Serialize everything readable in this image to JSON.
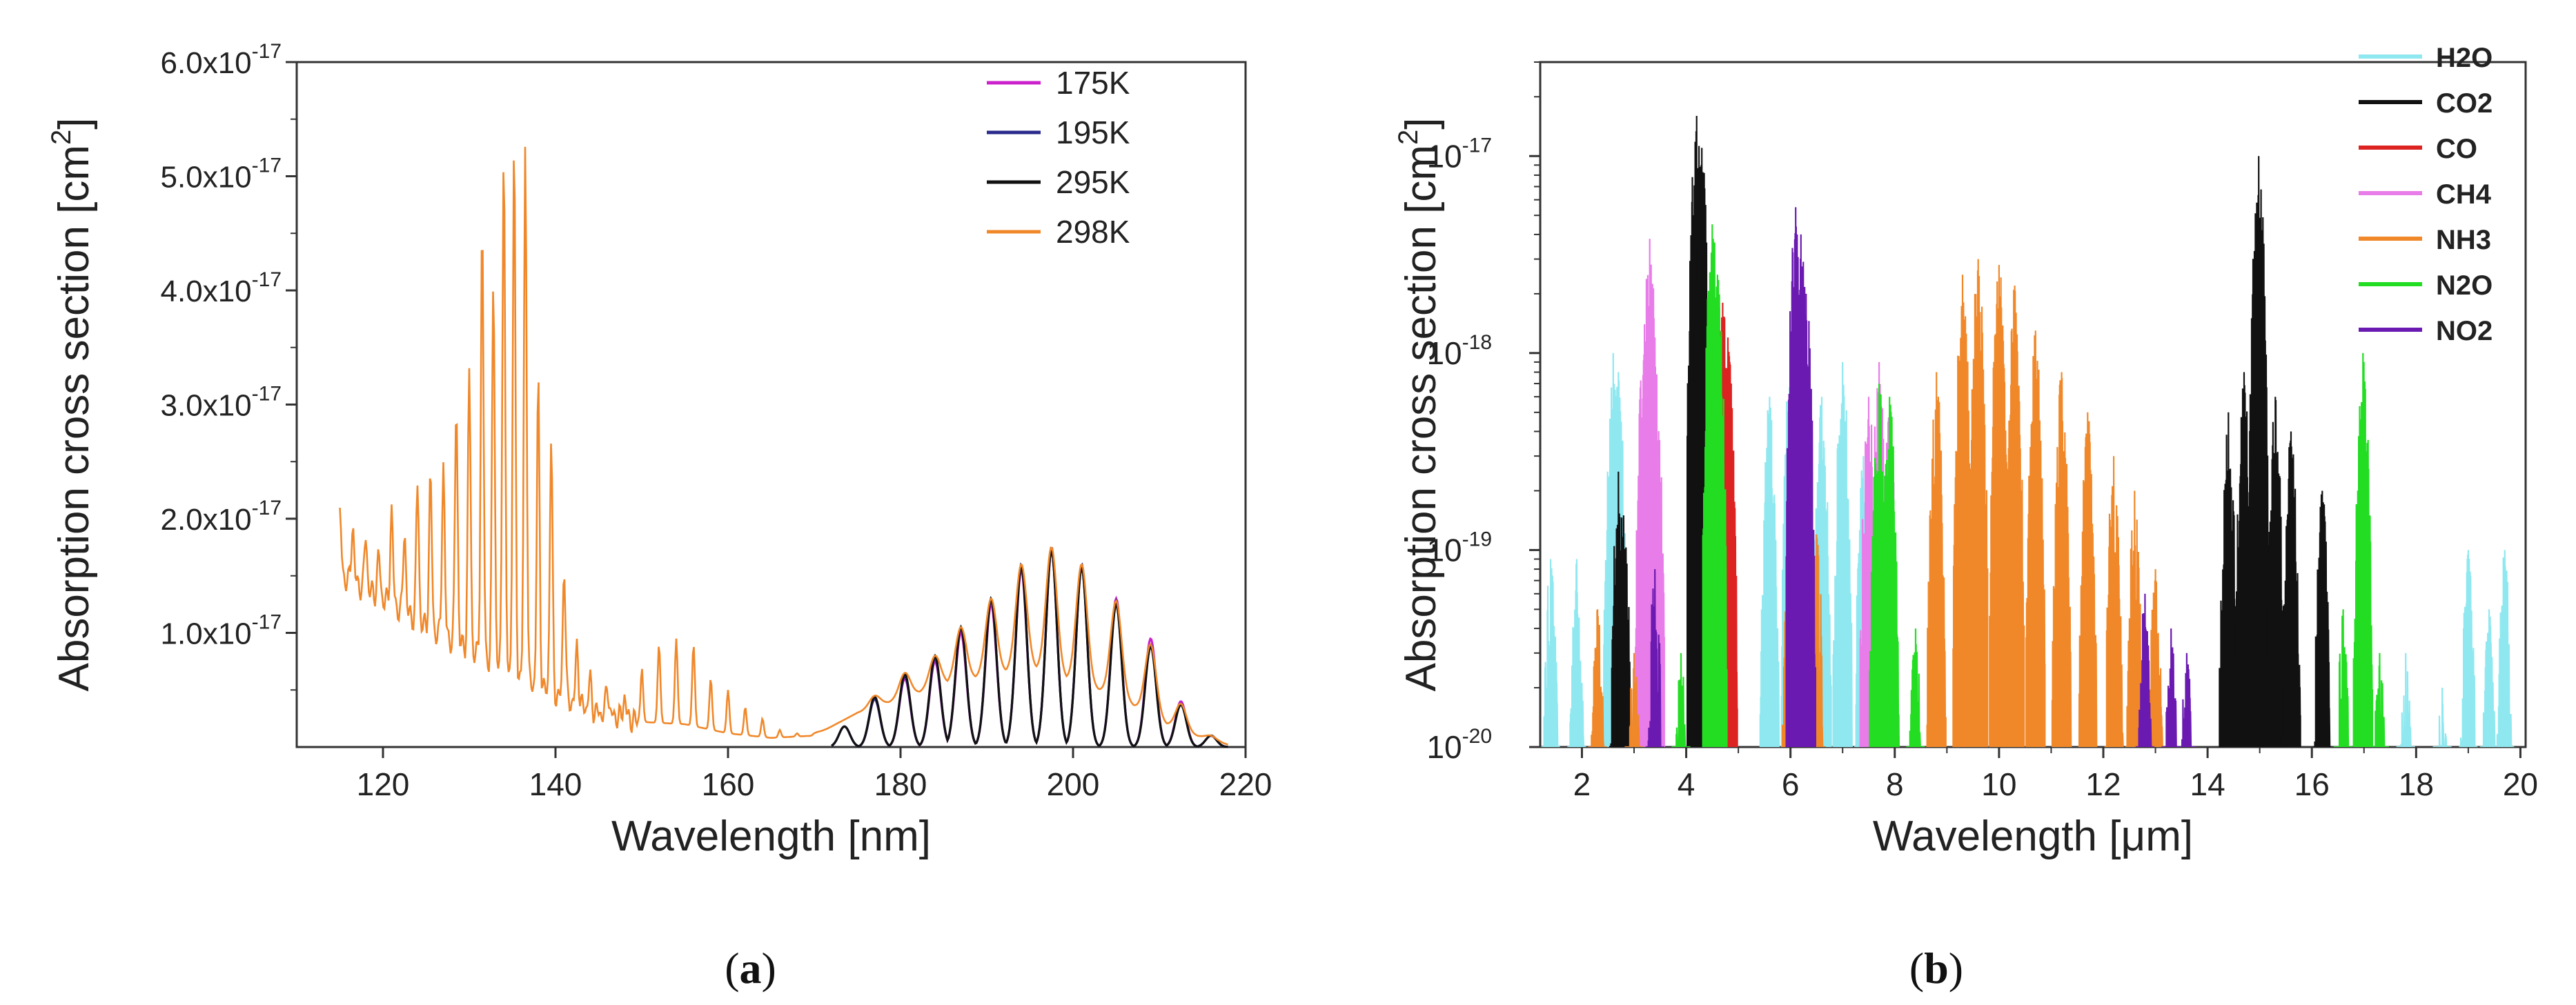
{
  "chart_data": [
    {
      "type": "line",
      "panel_label": "a",
      "xlabel": "Wavelength [nm]",
      "ylabel": "Absorption cross section [cm",
      "ylabel_sup": "2",
      "ylabel_close": "]",
      "xlim": [
        110,
        220
      ],
      "ylim": [
        0,
        6e-17
      ],
      "x_ticks": [
        120,
        140,
        160,
        180,
        200,
        220
      ],
      "y_ticks": [
        {
          "value": 1e-17,
          "mantissa": "1.0x10",
          "exp": "-17"
        },
        {
          "value": 2e-17,
          "mantissa": "2.0x10",
          "exp": "-17"
        },
        {
          "value": 3e-17,
          "mantissa": "3.0x10",
          "exp": "-17"
        },
        {
          "value": 4e-17,
          "mantissa": "4.0x10",
          "exp": "-17"
        },
        {
          "value": 5e-17,
          "mantissa": "5.0x10",
          "exp": "-17"
        },
        {
          "value": 6e-17,
          "mantissa": "6.0x10",
          "exp": "-17"
        }
      ],
      "legend_position": "top-right",
      "series": [
        {
          "name": "175K",
          "color": "#cc22cc",
          "x_range": [
            172,
            218
          ],
          "envelope": [
            [
              172,
              0.15
            ],
            [
              180,
              0.35
            ],
            [
              190,
              0.8
            ],
            [
              197,
              1.0
            ],
            [
              205,
              0.75
            ],
            [
              212,
              0.2
            ],
            [
              218,
              0.05
            ]
          ],
          "peaks": [
            [
              173.5,
              0.18
            ],
            [
              177,
              0.42
            ],
            [
              180.5,
              0.6
            ],
            [
              184,
              0.75
            ],
            [
              187,
              1.0
            ],
            [
              190.5,
              1.25
            ],
            [
              194,
              1.55
            ],
            [
              197.5,
              1.72
            ],
            [
              201,
              1.58
            ],
            [
              205,
              1.3
            ],
            [
              209,
              0.95
            ],
            [
              212.5,
              0.4
            ],
            [
              216,
              0.1
            ]
          ],
          "scale": 1e-17
        },
        {
          "name": "195K",
          "color": "#2a2a8c",
          "x_range": [
            172,
            218
          ],
          "envelope": [
            [
              172,
              0.15
            ],
            [
              180,
              0.35
            ],
            [
              190,
              0.8
            ],
            [
              197,
              1.0
            ],
            [
              205,
              0.75
            ],
            [
              212,
              0.2
            ],
            [
              218,
              0.05
            ]
          ],
          "peaks": [
            [
              173.5,
              0.18
            ],
            [
              177,
              0.42
            ],
            [
              180.5,
              0.62
            ],
            [
              184,
              0.78
            ],
            [
              187,
              1.05
            ],
            [
              190.5,
              1.3
            ],
            [
              194,
              1.6
            ],
            [
              197.5,
              1.75
            ],
            [
              201,
              1.6
            ],
            [
              205,
              1.28
            ],
            [
              209,
              0.9
            ],
            [
              212.5,
              0.38
            ],
            [
              216,
              0.1
            ]
          ],
          "scale": 1e-17
        },
        {
          "name": "295K",
          "color": "#111111",
          "x_range": [
            172,
            218
          ],
          "envelope": [
            [
              172,
              0.15
            ],
            [
              180,
              0.35
            ],
            [
              190,
              0.8
            ],
            [
              197,
              1.0
            ],
            [
              205,
              0.75
            ],
            [
              212,
              0.2
            ],
            [
              218,
              0.05
            ]
          ],
          "peaks": [
            [
              173.5,
              0.18
            ],
            [
              177,
              0.44
            ],
            [
              180.5,
              0.64
            ],
            [
              184,
              0.8
            ],
            [
              187,
              1.05
            ],
            [
              190.5,
              1.3
            ],
            [
              194,
              1.58
            ],
            [
              197.5,
              1.72
            ],
            [
              201,
              1.57
            ],
            [
              205,
              1.25
            ],
            [
              209,
              0.88
            ],
            [
              212.5,
              0.37
            ],
            [
              216,
              0.1
            ]
          ],
          "scale": 1e-17
        },
        {
          "name": "298K",
          "color": "#f0882a",
          "x_range": [
            115,
            218
          ],
          "peaks": [
            [
              115,
              2.05
            ],
            [
              116.5,
              1.95
            ],
            [
              118,
              1.85
            ],
            [
              119.5,
              1.7
            ],
            [
              121,
              2.1
            ],
            [
              122.5,
              1.9
            ],
            [
              124,
              2.3
            ],
            [
              125.5,
              2.4
            ],
            [
              127,
              2.5
            ],
            [
              128.5,
              3.0
            ],
            [
              130,
              3.3
            ],
            [
              131.5,
              4.6
            ],
            [
              132.8,
              4.1
            ],
            [
              134,
              5.3
            ],
            [
              135.2,
              5.25
            ],
            [
              136.5,
              5.3
            ],
            [
              138,
              3.2
            ],
            [
              139.5,
              2.7
            ],
            [
              141,
              1.6
            ],
            [
              142.5,
              0.9
            ],
            [
              144,
              0.6
            ],
            [
              146,
              0.55
            ],
            [
              148,
              0.45
            ],
            [
              150,
              0.7
            ],
            [
              152,
              0.9
            ],
            [
              154,
              0.95
            ],
            [
              156,
              0.9
            ],
            [
              158,
              0.6
            ],
            [
              160,
              0.5
            ],
            [
              162,
              0.35
            ],
            [
              164,
              0.25
            ],
            [
              166,
              0.15
            ],
            [
              168,
              0.12
            ],
            [
              170,
              0.12
            ],
            [
              172,
              0.18
            ],
            [
              173.5,
              0.2
            ],
            [
              177,
              0.45
            ],
            [
              180.5,
              0.65
            ],
            [
              184,
              0.8
            ],
            [
              187,
              1.05
            ],
            [
              190.5,
              1.3
            ],
            [
              194,
              1.6
            ],
            [
              197.5,
              1.75
            ],
            [
              201,
              1.6
            ],
            [
              205,
              1.28
            ],
            [
              209,
              0.9
            ],
            [
              212.5,
              0.38
            ],
            [
              216,
              0.1
            ]
          ],
          "base": [
            [
              115,
              1.5
            ],
            [
              120,
              1.3
            ],
            [
              125,
              1.05
            ],
            [
              130,
              0.85
            ],
            [
              135,
              0.65
            ],
            [
              140,
              0.45
            ],
            [
              145,
              0.3
            ],
            [
              150,
              0.22
            ],
            [
              155,
              0.2
            ],
            [
              160,
              0.12
            ],
            [
              165,
              0.08
            ],
            [
              170,
              0.1
            ],
            [
              175,
              0.3
            ],
            [
              185,
              0.55
            ],
            [
              195,
              0.7
            ],
            [
              205,
              0.45
            ],
            [
              212,
              0.15
            ],
            [
              218,
              0.02
            ]
          ],
          "scale": 1e-17
        }
      ]
    },
    {
      "type": "line",
      "panel_label": "b",
      "xlabel": "Wavelength [",
      "xlabel_unit": "μm",
      "xlabel_close": "]",
      "ylabel": "Absorption cross section [cm",
      "ylabel_sup": "2",
      "ylabel_close": "]",
      "yscale": "log",
      "xlim": [
        1.2,
        20.1
      ],
      "ylim": [
        1e-20,
        3e-17
      ],
      "x_ticks": [
        2,
        4,
        6,
        8,
        10,
        12,
        14,
        16,
        18,
        20
      ],
      "y_ticks": [
        {
          "value": 1e-20,
          "mantissa": "10",
          "exp": "-20"
        },
        {
          "value": 1e-19,
          "mantissa": "10",
          "exp": "-19"
        },
        {
          "value": 1e-18,
          "mantissa": "10",
          "exp": "-18"
        },
        {
          "value": 1e-17,
          "mantissa": "10",
          "exp": "-17"
        }
      ],
      "legend_position": "top-right",
      "series": [
        {
          "name": "H2O",
          "color": "#8fe8f0",
          "bands": [
            [
              1.4,
              9e-20
            ],
            [
              1.9,
              9e-20
            ],
            [
              2.6,
              1e-18
            ],
            [
              2.7,
              8e-19
            ],
            [
              3.2,
              5e-20
            ],
            [
              5.6,
              6e-19
            ],
            [
              6.0,
              1e-18
            ],
            [
              6.3,
              8e-19
            ],
            [
              6.6,
              6e-19
            ],
            [
              7.0,
              9e-19
            ],
            [
              7.4,
              3e-19
            ],
            [
              17.8,
              3e-20
            ],
            [
              18.5,
              2e-20
            ],
            [
              19.0,
              1e-19
            ],
            [
              19.4,
              5e-20
            ],
            [
              19.7,
              1e-19
            ]
          ]
        },
        {
          "name": "CO2",
          "color": "#111111",
          "bands": [
            [
              2.7,
              2.5e-19
            ],
            [
              2.8,
              1.5e-19
            ],
            [
              4.2,
              1.6e-17
            ],
            [
              4.3,
              1.1e-17
            ],
            [
              14.4,
              5e-19
            ],
            [
              14.7,
              8e-19
            ],
            [
              14.98,
              1e-17
            ],
            [
              15.3,
              6e-19
            ],
            [
              15.6,
              4e-19
            ],
            [
              16.2,
              2e-19
            ]
          ]
        },
        {
          "name": "CO",
          "color": "#dd2222",
          "bands": [
            [
              4.6,
              2.2e-18
            ],
            [
              4.7,
              1.8e-18
            ],
            [
              4.8,
              1.2e-18
            ]
          ]
        },
        {
          "name": "CH4",
          "color": "#e87ce8",
          "bands": [
            [
              3.2,
              1.4e-18
            ],
            [
              3.3,
              3.8e-18
            ],
            [
              3.4,
              1.2e-18
            ],
            [
              7.5,
              6e-19
            ],
            [
              7.7,
              9e-19
            ],
            [
              7.9,
              5e-19
            ]
          ]
        },
        {
          "name": "NH3",
          "color": "#f0882a",
          "bands": [
            [
              2.3,
              5e-20
            ],
            [
              3.0,
              3e-20
            ],
            [
              6.0,
              1.5e-19
            ],
            [
              6.2,
              1.8e-19
            ],
            [
              6.5,
              1.2e-19
            ],
            [
              8.8,
              8e-19
            ],
            [
              9.3,
              2.5e-18
            ],
            [
              9.6,
              3e-18
            ],
            [
              10.0,
              2.8e-18
            ],
            [
              10.3,
              2.2e-18
            ],
            [
              10.7,
              1.3e-18
            ],
            [
              11.2,
              8e-19
            ],
            [
              11.7,
              5e-19
            ],
            [
              12.2,
              3e-19
            ],
            [
              12.6,
              2e-19
            ],
            [
              13.0,
              8e-20
            ]
          ]
        },
        {
          "name": "N2O",
          "color": "#22dd22",
          "bands": [
            [
              3.9,
              3e-20
            ],
            [
              4.5,
              4.5e-18
            ],
            [
              4.6,
              2.5e-18
            ],
            [
              7.7,
              7e-19
            ],
            [
              7.9,
              6e-19
            ],
            [
              8.4,
              4e-20
            ],
            [
              16.6,
              5e-20
            ],
            [
              16.98,
              1e-18
            ],
            [
              17.3,
              3e-20
            ]
          ]
        },
        {
          "name": "NO2",
          "color": "#6a1ab0",
          "bands": [
            [
              3.4,
              8e-20
            ],
            [
              6.1,
              5.5e-18
            ],
            [
              6.2,
              4e-18
            ],
            [
              6.3,
              2e-18
            ],
            [
              12.8,
              6e-20
            ],
            [
              13.3,
              4e-20
            ],
            [
              13.6,
              3e-20
            ]
          ]
        }
      ]
    }
  ]
}
